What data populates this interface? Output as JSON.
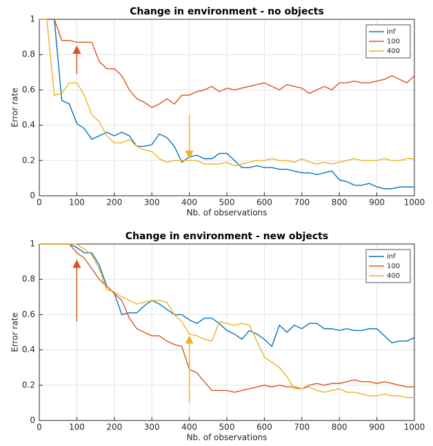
{
  "chart_data": [
    {
      "type": "line",
      "title": "Change in environment - no objects",
      "xlabel": "Nb. of observations",
      "ylabel": "Error rate",
      "x": [
        0,
        20,
        40,
        60,
        80,
        100,
        120,
        140,
        160,
        180,
        200,
        220,
        240,
        260,
        280,
        300,
        320,
        340,
        360,
        380,
        400,
        420,
        440,
        460,
        480,
        500,
        520,
        540,
        560,
        580,
        600,
        620,
        640,
        660,
        680,
        700,
        720,
        740,
        760,
        780,
        800,
        820,
        840,
        860,
        880,
        900,
        920,
        940,
        960,
        980,
        1000
      ],
      "series": [
        {
          "name": "inf",
          "color": "#0072bd",
          "values": [
            1,
            1,
            1,
            0.54,
            0.52,
            0.41,
            0.38,
            0.32,
            0.34,
            0.36,
            0.34,
            0.36,
            0.34,
            0.28,
            0.28,
            0.29,
            0.35,
            0.33,
            0.28,
            0.19,
            0.22,
            0.23,
            0.21,
            0.21,
            0.24,
            0.24,
            0.2,
            0.16,
            0.16,
            0.17,
            0.16,
            0.16,
            0.15,
            0.15,
            0.14,
            0.13,
            0.13,
            0.12,
            0.13,
            0.14,
            0.09,
            0.08,
            0.06,
            0.06,
            0.07,
            0.05,
            0.04,
            0.04,
            0.05,
            0.05,
            0.05
          ]
        },
        {
          "name": "100",
          "color": "#d95319",
          "values": [
            1,
            1,
            1,
            0.88,
            0.88,
            0.87,
            0.87,
            0.87,
            0.76,
            0.72,
            0.72,
            0.68,
            0.6,
            0.55,
            0.53,
            0.5,
            0.52,
            0.55,
            0.52,
            0.57,
            0.57,
            0.59,
            0.6,
            0.62,
            0.59,
            0.61,
            0.6,
            0.61,
            0.62,
            0.63,
            0.64,
            0.62,
            0.6,
            0.63,
            0.62,
            0.61,
            0.58,
            0.6,
            0.62,
            0.6,
            0.64,
            0.64,
            0.65,
            0.64,
            0.64,
            0.65,
            0.66,
            0.68,
            0.66,
            0.64,
            0.68
          ]
        },
        {
          "name": "400",
          "color": "#edb120",
          "values": [
            1,
            1,
            0.57,
            0.58,
            0.64,
            0.64,
            0.57,
            0.46,
            0.42,
            0.34,
            0.3,
            0.3,
            0.32,
            0.28,
            0.26,
            0.25,
            0.21,
            0.19,
            0.2,
            0.2,
            0.2,
            0.2,
            0.18,
            0.18,
            0.18,
            0.19,
            0.17,
            0.18,
            0.19,
            0.2,
            0.2,
            0.21,
            0.2,
            0.2,
            0.19,
            0.21,
            0.19,
            0.18,
            0.19,
            0.18,
            0.19,
            0.2,
            0.21,
            0.2,
            0.2,
            0.2,
            0.21,
            0.2,
            0.2,
            0.21,
            0.21
          ]
        }
      ],
      "arrows": [
        {
          "x": 100,
          "y_from": 0.69,
          "y_to": 0.84,
          "color": "#d95319"
        },
        {
          "x": 400,
          "y_from": 0.46,
          "y_to": 0.22,
          "color": "#edb120"
        }
      ],
      "xlim": [
        0,
        1000
      ],
      "xticks": [
        0,
        100,
        200,
        300,
        400,
        500,
        600,
        700,
        800,
        900,
        1000
      ],
      "ylim": [
        0,
        1
      ],
      "yticks": [
        0,
        0.2,
        0.4,
        0.6,
        0.8,
        1
      ],
      "grid": true,
      "legend": "upper right"
    },
    {
      "type": "line",
      "title": "Change in environment - new objects",
      "xlabel": "Nb. of observations",
      "ylabel": "Error rate",
      "x": [
        0,
        20,
        40,
        60,
        80,
        100,
        120,
        140,
        160,
        180,
        200,
        220,
        240,
        260,
        280,
        300,
        320,
        340,
        360,
        380,
        400,
        420,
        440,
        460,
        480,
        500,
        520,
        540,
        560,
        580,
        600,
        620,
        640,
        660,
        680,
        700,
        720,
        740,
        760,
        780,
        800,
        820,
        840,
        860,
        880,
        900,
        920,
        940,
        960,
        980,
        1000
      ],
      "series": [
        {
          "name": "inf",
          "color": "#0072bd",
          "values": [
            1,
            1,
            1,
            1,
            1,
            0.98,
            0.95,
            0.95,
            0.88,
            0.76,
            0.72,
            0.6,
            0.61,
            0.61,
            0.65,
            0.68,
            0.66,
            0.63,
            0.6,
            0.6,
            0.57,
            0.55,
            0.58,
            0.58,
            0.55,
            0.51,
            0.49,
            0.46,
            0.51,
            0.49,
            0.46,
            0.42,
            0.54,
            0.5,
            0.54,
            0.52,
            0.55,
            0.55,
            0.52,
            0.52,
            0.51,
            0.52,
            0.51,
            0.51,
            0.52,
            0.52,
            0.48,
            0.44,
            0.45,
            0.45,
            0.47
          ]
        },
        {
          "name": "100",
          "color": "#d95319",
          "values": [
            1,
            1,
            1,
            1,
            1,
            0.95,
            0.92,
            0.86,
            0.8,
            0.76,
            0.72,
            0.68,
            0.58,
            0.52,
            0.5,
            0.48,
            0.48,
            0.45,
            0.43,
            0.42,
            0.29,
            0.27,
            0.22,
            0.17,
            0.17,
            0.17,
            0.16,
            0.17,
            0.18,
            0.19,
            0.2,
            0.19,
            0.2,
            0.19,
            0.19,
            0.18,
            0.2,
            0.21,
            0.2,
            0.21,
            0.21,
            0.22,
            0.23,
            0.22,
            0.22,
            0.21,
            0.22,
            0.21,
            0.2,
            0.19,
            0.19
          ]
        },
        {
          "name": "400",
          "color": "#edb120",
          "values": [
            1,
            1,
            1,
            1,
            1,
            1,
            0.97,
            0.94,
            0.86,
            0.74,
            0.73,
            0.7,
            0.68,
            0.66,
            0.67,
            0.68,
            0.68,
            0.67,
            0.6,
            0.56,
            0.49,
            0.48,
            0.46,
            0.45,
            0.56,
            0.55,
            0.54,
            0.55,
            0.54,
            0.45,
            0.36,
            0.33,
            0.3,
            0.25,
            0.18,
            0.18,
            0.19,
            0.17,
            0.16,
            0.17,
            0.18,
            0.16,
            0.16,
            0.15,
            0.14,
            0.14,
            0.15,
            0.14,
            0.14,
            0.13,
            0.13
          ]
        }
      ],
      "arrows": [
        {
          "x": 100,
          "y_from": 0.56,
          "y_to": 0.9,
          "color": "#d95319"
        },
        {
          "x": 400,
          "y_from": 0.1,
          "y_to": 0.47,
          "color": "#edb120"
        }
      ],
      "xlim": [
        0,
        1000
      ],
      "xticks": [
        0,
        100,
        200,
        300,
        400,
        500,
        600,
        700,
        800,
        900,
        1000
      ],
      "ylim": [
        0,
        1
      ],
      "yticks": [
        0,
        0.2,
        0.4,
        0.6,
        0.8,
        1
      ],
      "grid": true,
      "legend": "upper right"
    }
  ]
}
